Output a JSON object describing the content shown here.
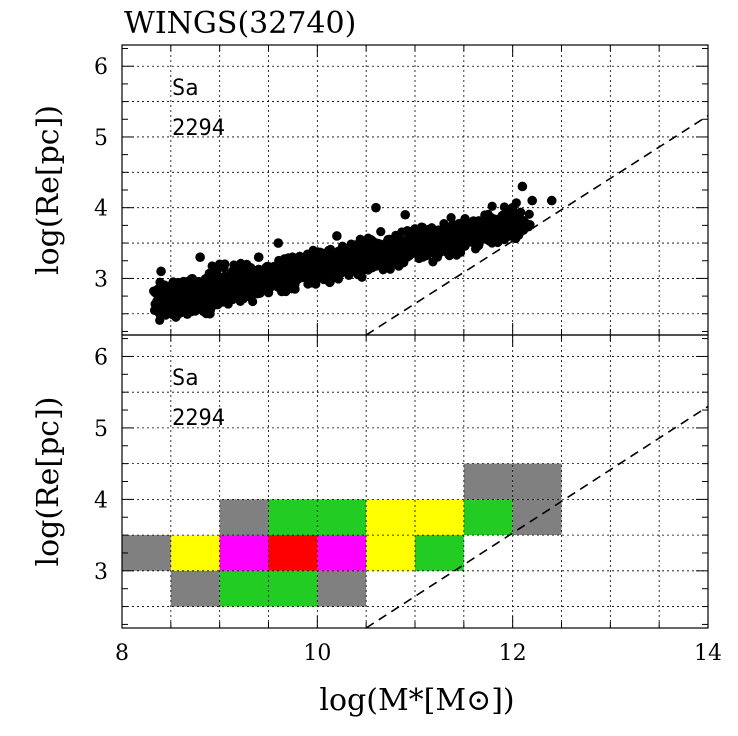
{
  "chart_data": {
    "title": "WINGS(32740)",
    "xlabel": "log(M*[M⊙])",
    "xlim": [
      8,
      14
    ],
    "x_ticks": [
      "8",
      "10",
      "12",
      "14"
    ],
    "panels": [
      {
        "type": "scatter",
        "ylabel": "log(Re[pc])",
        "ylim": [
          2.2,
          6.3
        ],
        "y_ticks": [
          "3",
          "4",
          "5",
          "6"
        ],
        "annotation_type": "Sa",
        "annotation_count": "2294",
        "marker_color": "#000000",
        "trend": {
          "slope": 0.3,
          "intercept": 0.165,
          "x_start": 8.4,
          "x_end": 12.1
        },
        "sample_points": [
          [
            8.4,
            3.1
          ],
          [
            8.6,
            2.9
          ],
          [
            8.8,
            3.3
          ],
          [
            9.0,
            3.2
          ],
          [
            9.2,
            3.0
          ],
          [
            9.4,
            3.3
          ],
          [
            9.6,
            3.5
          ],
          [
            9.8,
            3.1
          ],
          [
            10.0,
            3.3
          ],
          [
            10.2,
            3.6
          ],
          [
            10.4,
            3.4
          ],
          [
            10.6,
            3.5
          ],
          [
            10.8,
            3.5
          ],
          [
            11.0,
            3.7
          ],
          [
            11.2,
            3.6
          ],
          [
            11.5,
            3.8
          ],
          [
            11.8,
            3.8
          ],
          [
            12.0,
            4.0
          ],
          [
            12.2,
            4.1
          ],
          [
            12.4,
            4.1
          ],
          [
            8.7,
            2.6
          ],
          [
            8.9,
            2.5
          ],
          [
            9.5,
            2.8
          ],
          [
            10.6,
            4.0
          ],
          [
            10.9,
            3.9
          ],
          [
            12.1,
            4.3
          ]
        ],
        "reference_line": {
          "style": "dashed",
          "points": [
            [
              10.5,
              2.2
            ],
            [
              14.0,
              5.3
            ]
          ]
        }
      },
      {
        "type": "heatmap",
        "ylabel": "log(Re[pc])",
        "ylim": [
          2.2,
          6.3
        ],
        "y_ticks": [
          "3",
          "4",
          "5",
          "6"
        ],
        "annotation_type": "Sa",
        "annotation_count": "2294",
        "bin_width": 0.5,
        "bin_height": 0.5,
        "cells": [
          {
            "x0": 8.0,
            "y0": 3.0,
            "color": "#808080"
          },
          {
            "x0": 8.5,
            "y0": 3.0,
            "color": "#ffff00"
          },
          {
            "x0": 9.0,
            "y0": 3.0,
            "color": "#ff00ff"
          },
          {
            "x0": 9.5,
            "y0": 3.0,
            "color": "#ff0000"
          },
          {
            "x0": 10.0,
            "y0": 3.0,
            "color": "#ff00ff"
          },
          {
            "x0": 10.5,
            "y0": 3.0,
            "color": "#ffff00"
          },
          {
            "x0": 11.0,
            "y0": 3.0,
            "color": "#22cc22"
          },
          {
            "x0": 8.5,
            "y0": 2.5,
            "color": "#808080"
          },
          {
            "x0": 9.0,
            "y0": 2.5,
            "color": "#22cc22"
          },
          {
            "x0": 9.5,
            "y0": 2.5,
            "color": "#22cc22"
          },
          {
            "x0": 10.0,
            "y0": 2.5,
            "color": "#808080"
          },
          {
            "x0": 9.0,
            "y0": 3.5,
            "color": "#808080"
          },
          {
            "x0": 9.5,
            "y0": 3.5,
            "color": "#22cc22"
          },
          {
            "x0": 10.0,
            "y0": 3.5,
            "color": "#22cc22"
          },
          {
            "x0": 10.5,
            "y0": 3.5,
            "color": "#ffff00"
          },
          {
            "x0": 11.0,
            "y0": 3.5,
            "color": "#ffff00"
          },
          {
            "x0": 11.5,
            "y0": 3.5,
            "color": "#22cc22"
          },
          {
            "x0": 12.0,
            "y0": 3.5,
            "color": "#808080"
          },
          {
            "x0": 11.5,
            "y0": 4.0,
            "color": "#808080"
          },
          {
            "x0": 12.0,
            "y0": 4.0,
            "color": "#808080"
          }
        ],
        "reference_line": {
          "style": "dashed",
          "points": [
            [
              10.5,
              2.2
            ],
            [
              14.0,
              5.3
            ]
          ]
        }
      }
    ]
  }
}
